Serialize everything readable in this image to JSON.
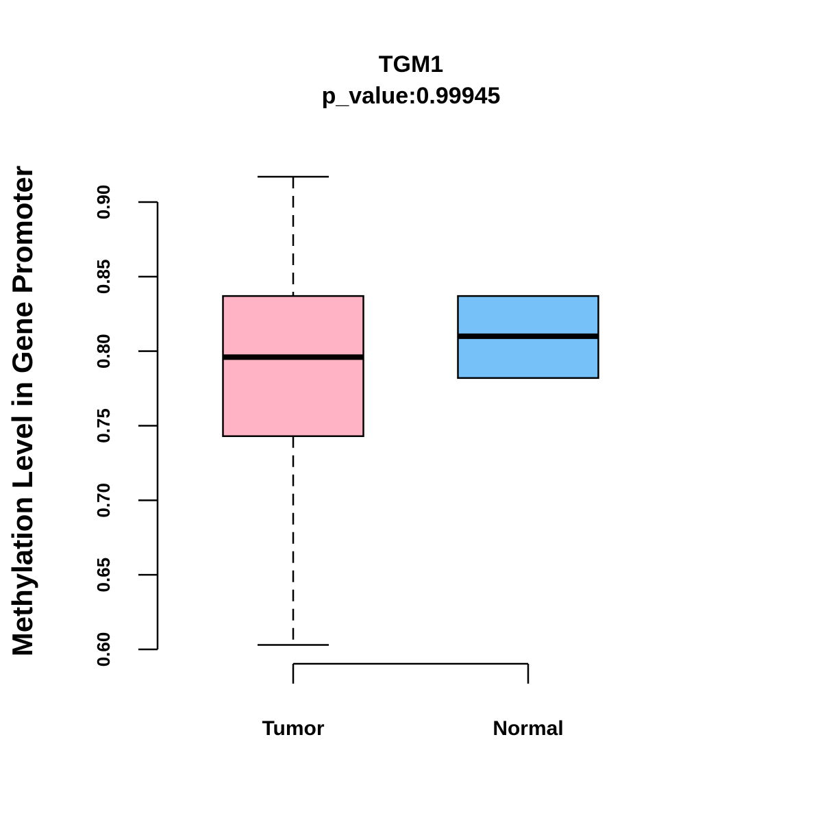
{
  "chart_data": {
    "type": "boxplot",
    "title": "TGM1",
    "subtitle": "p_value:0.99945",
    "xlabel": "",
    "ylabel": "Methylation Level in Gene Promoter",
    "ylim": [
      0.6,
      0.9
    ],
    "yticks": [
      "0.60",
      "0.65",
      "0.70",
      "0.75",
      "0.80",
      "0.85",
      "0.90"
    ],
    "grid": false,
    "categories": [
      "Tumor",
      "Normal"
    ],
    "boxes": [
      {
        "name": "Tumor",
        "min": 0.603,
        "q1": 0.743,
        "median": 0.796,
        "q3": 0.837,
        "max": 0.917,
        "color": "#FFB3C4"
      },
      {
        "name": "Normal",
        "min": 0.782,
        "q1": 0.782,
        "median": 0.81,
        "q3": 0.837,
        "max": 0.837,
        "color": "#75C1F8"
      }
    ]
  }
}
